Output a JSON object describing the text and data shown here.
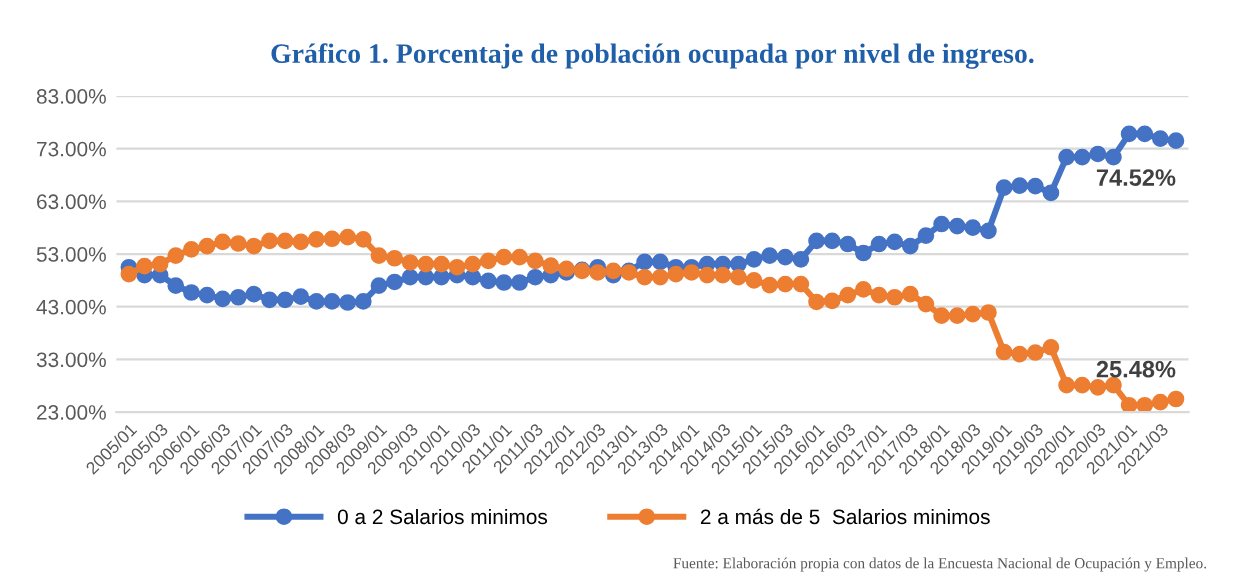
{
  "chart_data": {
    "type": "line",
    "title": "Gráfico 1. Porcentaje de población ocupada por nivel de ingreso.",
    "categories": [
      "2005/01",
      null,
      "2005/03",
      null,
      "2006/01",
      null,
      "2006/03",
      null,
      "2007/01",
      null,
      "2007/03",
      null,
      "2008/01",
      null,
      "2008/03",
      null,
      "2009/01",
      null,
      "2009/03",
      null,
      "2010/01",
      null,
      "2010/03",
      null,
      "2011/01",
      null,
      "2011/03",
      null,
      "2012/01",
      null,
      "2012/03",
      null,
      "2013/01",
      null,
      "2013/03",
      null,
      "2014/01",
      null,
      "2014/03",
      null,
      "2015/01",
      null,
      "2015/03",
      null,
      "2016/01",
      null,
      "2016/03",
      null,
      "2017/01",
      null,
      "2017/03",
      null,
      "2018/01",
      null,
      "2018/03",
      null,
      "2019/01",
      null,
      "2019/03",
      null,
      "2020/01",
      null,
      "2020/03",
      null,
      "2021/01",
      null,
      "2021/03",
      null
    ],
    "series": [
      {
        "name": "0 a 2 Salarios minimos",
        "color": "#4472c4",
        "values": [
          50.5,
          49.0,
          49.0,
          47.0,
          45.7,
          45.2,
          44.5,
          44.8,
          45.4,
          44.3,
          44.3,
          44.9,
          44.0,
          44.0,
          43.8,
          44.0,
          47.0,
          47.7,
          48.6,
          48.6,
          48.6,
          49.0,
          48.6,
          47.9,
          47.6,
          47.6,
          48.6,
          49.0,
          49.5,
          50.0,
          50.5,
          49.0,
          49.8,
          51.5,
          51.5,
          50.5,
          50.5,
          51.1,
          51.1,
          51.1,
          52.0,
          52.7,
          52.4,
          52.0,
          55.5,
          55.5,
          54.9,
          53.2,
          54.9,
          55.3,
          54.5,
          56.5,
          58.7,
          58.3,
          58.0,
          57.4,
          65.6,
          66.0,
          65.9,
          64.6,
          71.4,
          71.4,
          72.0,
          71.4,
          75.8,
          75.8,
          74.9,
          74.52
        ]
      },
      {
        "name": "2 a más de 5  Salarios minimos",
        "color": "#ed7d31",
        "values": [
          49.2,
          50.7,
          51.1,
          52.7,
          53.9,
          54.5,
          55.3,
          55.0,
          54.5,
          55.5,
          55.5,
          55.3,
          55.8,
          55.9,
          56.2,
          55.8,
          52.7,
          52.2,
          51.4,
          51.1,
          51.1,
          50.5,
          51.1,
          51.7,
          52.4,
          52.4,
          51.7,
          50.8,
          50.2,
          49.8,
          49.5,
          49.8,
          49.5,
          48.6,
          48.6,
          49.2,
          49.5,
          49.0,
          49.0,
          48.6,
          48.0,
          47.1,
          47.3,
          47.3,
          43.9,
          44.1,
          45.2,
          46.3,
          45.2,
          44.8,
          45.4,
          43.5,
          41.3,
          41.3,
          41.6,
          41.9,
          34.4,
          34.0,
          34.3,
          35.3,
          28.1,
          28.1,
          27.7,
          28.1,
          24.3,
          24.3,
          24.9,
          25.48
        ]
      }
    ],
    "ylim": [
      23,
      83
    ],
    "yticks": [
      {
        "value": 23,
        "label": "23.00%"
      },
      {
        "value": 33,
        "label": "33.00%"
      },
      {
        "value": 43,
        "label": "43.00%"
      },
      {
        "value": 53,
        "label": "53.00%"
      },
      {
        "value": 63,
        "label": "63.00%"
      },
      {
        "value": 73,
        "label": "73.00%"
      },
      {
        "value": 83,
        "label": "83.00%"
      }
    ],
    "grid": "y",
    "legend": "bottom",
    "marker": "circle",
    "line_style": "solid",
    "annotations": [
      {
        "text": "74.52%",
        "y": 74.52
      },
      {
        "text": "25.48%",
        "y": 25.48
      },
      "Fuente: Elaboración propia con datos de la Encuesta Nacional de Ocupación y Empleo."
    ]
  }
}
